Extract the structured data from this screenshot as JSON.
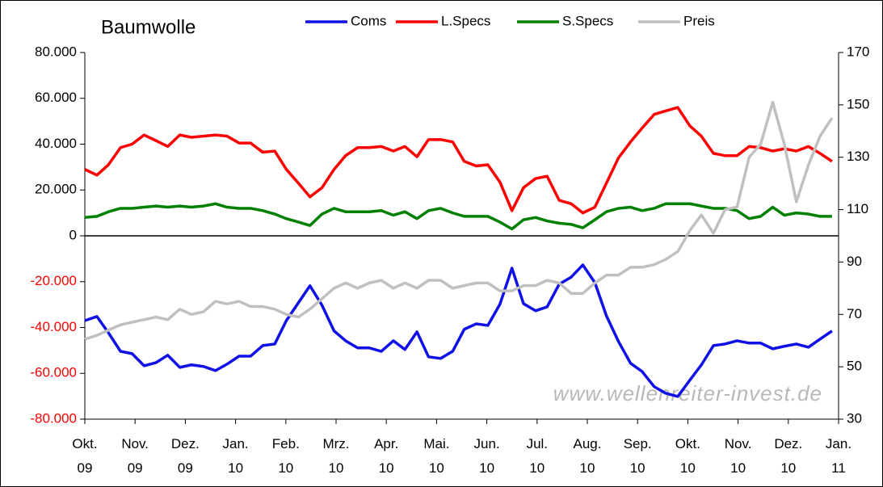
{
  "chart_data": {
    "type": "line",
    "title": "Baumwolle",
    "annotation": "www.wellenreiter-invest.de",
    "x": [
      0,
      0.24,
      0.47,
      0.71,
      0.94,
      1.18,
      1.42,
      1.65,
      1.89,
      2.12,
      2.36,
      2.6,
      2.83,
      3.07,
      3.3,
      3.54,
      3.78,
      4.01,
      4.25,
      4.48,
      4.72,
      4.96,
      5.19,
      5.43,
      5.66,
      5.9,
      6.14,
      6.37,
      6.61,
      6.84,
      7.08,
      7.32,
      7.55,
      7.79,
      8.02,
      8.26,
      8.5,
      8.73,
      8.97,
      9.2,
      9.44,
      9.68,
      9.91,
      10.15,
      10.38,
      10.62,
      10.86,
      11.09,
      11.33,
      11.56,
      11.8,
      12.04,
      12.27,
      12.51,
      12.74,
      12.98,
      13.22,
      13.45,
      13.69,
      13.92,
      14.16,
      14.4,
      14.63,
      14.87
    ],
    "xlim": [
      0,
      15
    ],
    "xticks": [
      {
        "value": 0,
        "label": "Okt.\n09"
      },
      {
        "value": 1,
        "label": "Nov.\n09"
      },
      {
        "value": 2,
        "label": "Dez.\n09"
      },
      {
        "value": 3,
        "label": "Jan.\n10"
      },
      {
        "value": 4,
        "label": "Feb.\n10"
      },
      {
        "value": 5,
        "label": "Mrz.\n10"
      },
      {
        "value": 6,
        "label": "Apr.\n10"
      },
      {
        "value": 7,
        "label": "Mai.\n10"
      },
      {
        "value": 8,
        "label": "Jun.\n10"
      },
      {
        "value": 9,
        "label": "Jul.\n10"
      },
      {
        "value": 10,
        "label": "Aug.\n10"
      },
      {
        "value": 11,
        "label": "Sep.\n10"
      },
      {
        "value": 12,
        "label": "Okt.\n10"
      },
      {
        "value": 13,
        "label": "Nov.\n10"
      },
      {
        "value": 14,
        "label": "Dez.\n10"
      },
      {
        "value": 15,
        "label": "Jan.\n11"
      }
    ],
    "ylim": [
      -80000,
      80000
    ],
    "yticks": [
      {
        "value": -80000,
        "label": "-80.000"
      },
      {
        "value": -60000,
        "label": "-60.000"
      },
      {
        "value": -40000,
        "label": "-40.000"
      },
      {
        "value": -20000,
        "label": "-20.000"
      },
      0,
      {
        "value": 20000,
        "label": "20.000"
      },
      {
        "value": 40000,
        "label": "40.000"
      },
      {
        "value": 60000,
        "label": "60.000"
      },
      {
        "value": 80000,
        "label": "80.000"
      }
    ],
    "negative_tick_color": "#ff0000",
    "y2lim": [
      30,
      170
    ],
    "y2ticks": [
      30,
      50,
      70,
      90,
      110,
      130,
      150,
      170
    ],
    "series": [
      {
        "name": "Coms",
        "color": "#1010e8",
        "values": [
          -37000,
          -35200,
          -42300,
          -50400,
          -51400,
          -56700,
          -55300,
          -52100,
          -57400,
          -56300,
          -57000,
          -58800,
          -56000,
          -52500,
          -52500,
          -47900,
          -47200,
          -37000,
          -29200,
          -21800,
          -30300,
          -41500,
          -45800,
          -48900,
          -48900,
          -50400,
          -45800,
          -49600,
          -41900,
          -52800,
          -53500,
          -50400,
          -40800,
          -38400,
          -39100,
          -29900,
          -14100,
          -29600,
          -32700,
          -31000,
          -21100,
          -18000,
          -12700,
          -20400,
          -34900,
          -46100,
          -55600,
          -59200,
          -65800,
          -68700,
          -70100,
          -63000,
          -56300,
          -47900,
          -47200,
          -45800,
          -46800,
          -46800,
          -49300,
          -48200,
          -47200,
          -48600,
          -45100,
          -41500
        ]
      },
      {
        "name": "L.Specs",
        "color": "#ff0000",
        "values": [
          29000,
          26500,
          31000,
          38500,
          40000,
          44000,
          41500,
          39000,
          44000,
          43000,
          43500,
          44000,
          43500,
          40500,
          40500,
          36500,
          37000,
          29000,
          23000,
          17000,
          21000,
          29000,
          35000,
          38500,
          38500,
          39000,
          37000,
          39000,
          34500,
          42000,
          42000,
          41000,
          32500,
          30500,
          31000,
          23500,
          11000,
          21000,
          25000,
          26000,
          15500,
          14000,
          10000,
          12500,
          23000,
          34000,
          41000,
          47000,
          53000,
          54500,
          56000,
          48000,
          43500,
          36000,
          35000,
          35000,
          39000,
          38500,
          37000,
          38000,
          37000,
          39000,
          36000,
          32500
        ]
      },
      {
        "name": "S.Specs",
        "color": "#008000",
        "values": [
          8000,
          8500,
          10500,
          12000,
          12000,
          12500,
          13000,
          12500,
          13000,
          12500,
          13000,
          14000,
          12500,
          12000,
          12000,
          11000,
          9500,
          7500,
          6000,
          4500,
          9500,
          12000,
          10500,
          10500,
          10500,
          11000,
          9000,
          10500,
          7500,
          11000,
          12000,
          10000,
          8500,
          8500,
          8500,
          6000,
          3000,
          7000,
          8000,
          6500,
          5500,
          5000,
          3500,
          7000,
          10500,
          12000,
          12500,
          11000,
          12000,
          14000,
          14000,
          14000,
          13000,
          12000,
          12000,
          11000,
          7500,
          8500,
          12500,
          9000,
          10000,
          9500,
          8500,
          8500
        ]
      },
      {
        "name": "Preis",
        "color": "#c0c0c0",
        "axis": "y2",
        "values": [
          60.5,
          62,
          64,
          66,
          67,
          68,
          69,
          68,
          72,
          70,
          71,
          75,
          74,
          75,
          73,
          73,
          72,
          70,
          69,
          72,
          76,
          80,
          82,
          80,
          82,
          83,
          80,
          82,
          80,
          83,
          83,
          80,
          81,
          82,
          82,
          79,
          79,
          81,
          81,
          83,
          82,
          78,
          78,
          82,
          85,
          85,
          88,
          88,
          89,
          91,
          94,
          102,
          108,
          101,
          110,
          111,
          130,
          135,
          151,
          135,
          113,
          127,
          138,
          145
        ]
      }
    ]
  }
}
